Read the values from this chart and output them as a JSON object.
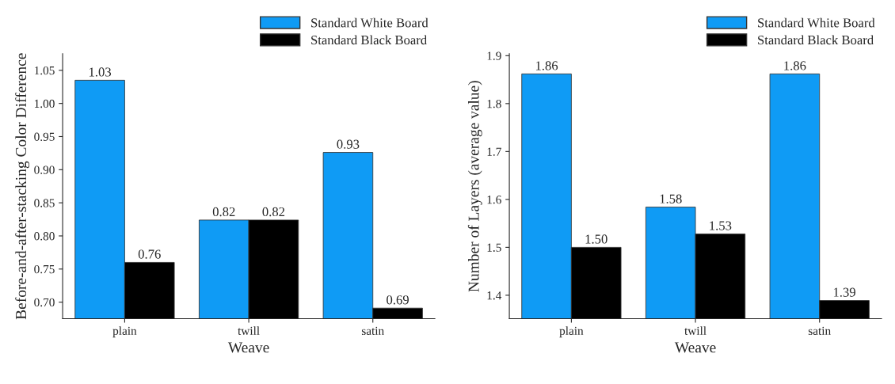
{
  "chart_data": [
    {
      "type": "bar",
      "categories": [
        "plain",
        "twill",
        "satin"
      ],
      "xlabel": "Weave",
      "ylabel": "Before-and-after-stacking Color Difference",
      "ylim": [
        0.675,
        1.075
      ],
      "yticks": [
        {
          "value": 0.7,
          "label": "0.70"
        },
        {
          "value": 0.75,
          "label": "0.75"
        },
        {
          "value": 0.8,
          "label": "0.80"
        },
        {
          "value": 0.85,
          "label": "0.85"
        },
        {
          "value": 0.9,
          "label": "0.90"
        },
        {
          "value": 0.95,
          "label": "0.95"
        },
        {
          "value": 1.0,
          "label": "1.00"
        },
        {
          "value": 1.05,
          "label": "1.05"
        }
      ],
      "legend": "top right",
      "series": [
        {
          "name": "Standard White Board",
          "color": "#0f9bf5",
          "values": [
            1.035,
            0.824,
            0.926
          ],
          "value_labels": [
            "1.03",
            "0.82",
            "0.93"
          ]
        },
        {
          "name": "Standard Black Board",
          "color": "#000000",
          "values": [
            0.76,
            0.824,
            0.691
          ],
          "value_labels": [
            "0.76",
            "0.82",
            "0.69"
          ]
        }
      ]
    },
    {
      "type": "bar",
      "categories": [
        "plain",
        "twill",
        "satin"
      ],
      "xlabel": "Weave",
      "ylabel": "Number of Layers (average value)",
      "ylim": [
        1.351,
        1.904
      ],
      "yticks": [
        1.4,
        1.5,
        1.6,
        1.7,
        1.8,
        1.9
      ],
      "legend": "top right",
      "series": [
        {
          "name": "Standard White Board",
          "color": "#0f9bf5",
          "values": [
            1.862,
            1.584,
            1.862
          ],
          "value_labels": [
            "1.86",
            "1.58",
            "1.86"
          ]
        },
        {
          "name": "Standard Black Board",
          "color": "#000000",
          "values": [
            1.5,
            1.528,
            1.389
          ],
          "value_labels": [
            "1.50",
            "1.53",
            "1.39"
          ]
        }
      ]
    }
  ]
}
